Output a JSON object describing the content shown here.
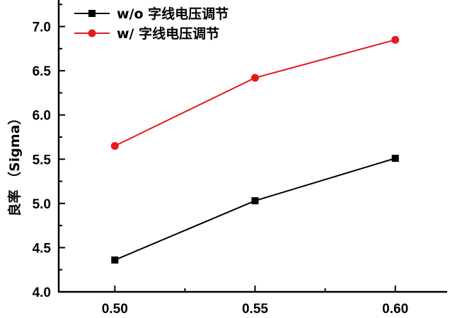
{
  "chart_data": {
    "type": "line",
    "title": "",
    "xlabel": "",
    "ylabel": "良率 （Sigma）",
    "x": [
      0.5,
      0.55,
      0.6
    ],
    "x_tick_labels": [
      "0.50",
      "0.55",
      "0.60"
    ],
    "y_tick_labels": [
      "4.0",
      "4.5",
      "5.0",
      "5.5",
      "6.0",
      "6.5",
      "7.0"
    ],
    "xlim": [
      0.48,
      0.6185
    ],
    "ylim": [
      4.0,
      7.3
    ],
    "grid": false,
    "legend_position": "top-left",
    "series": [
      {
        "name": "w/o 字线电压调节",
        "values": [
          4.36,
          5.03,
          5.51
        ],
        "color": "#000000",
        "marker": "square"
      },
      {
        "name": "w/ 字线电压调节",
        "values": [
          5.65,
          6.42,
          6.85
        ],
        "color": "#e8191c",
        "marker": "circle"
      }
    ]
  }
}
